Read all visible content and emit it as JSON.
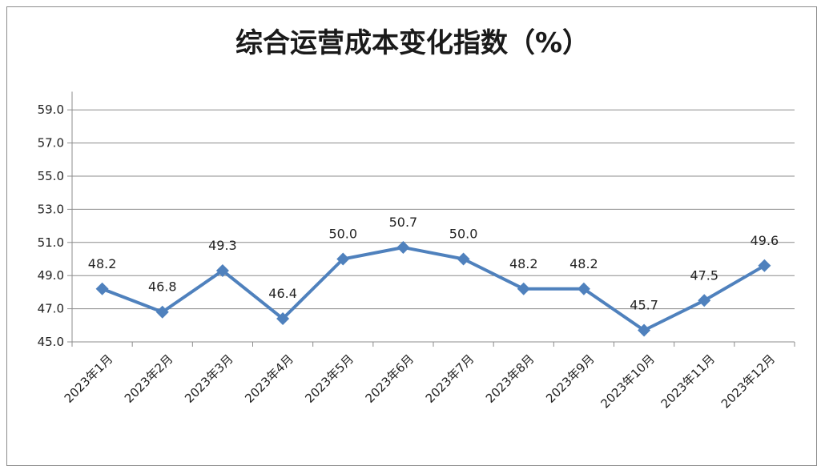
{
  "chart_data": {
    "type": "line",
    "title": "综合运营成本变化指数（%）",
    "categories": [
      "2023年1月",
      "2023年2月",
      "2023年3月",
      "2023年4月",
      "2023年5月",
      "2023年6月",
      "2023年7月",
      "2023年8月",
      "2023年9月",
      "2023年10月",
      "2023年11月",
      "2023年12月"
    ],
    "series": [
      {
        "values": [
          48.2,
          46.8,
          49.3,
          46.4,
          50.0,
          50.7,
          50.0,
          48.2,
          48.2,
          45.7,
          47.5,
          49.6
        ]
      }
    ],
    "data_labels": [
      "48.2",
      "46.8",
      "49.3",
      "46.4",
      "50.0",
      "50.7",
      "50.0",
      "48.2",
      "48.2",
      "45.7",
      "47.5",
      "49.6"
    ],
    "yticks": [
      "45.0",
      "47.0",
      "49.0",
      "51.0",
      "53.0",
      "55.0",
      "57.0",
      "59.0"
    ],
    "ylim": [
      45,
      60
    ],
    "grid": true,
    "legend": "none",
    "line_color": "#4f81bd",
    "xlabel": "",
    "ylabel": ""
  }
}
